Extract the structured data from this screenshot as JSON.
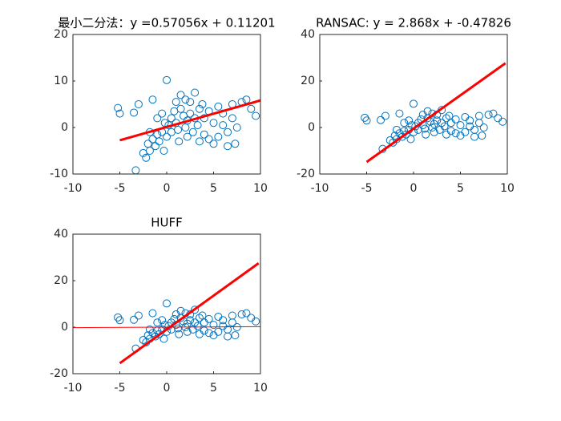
{
  "chart_data": [
    {
      "type": "scatter",
      "title": "最小二分法：y =0.57056x + 0.11201",
      "xlim": [
        -10,
        10
      ],
      "xticks": [
        -10,
        -5,
        0,
        5,
        10
      ],
      "ylim": [
        -10,
        20
      ],
      "yticks": [
        -10,
        0,
        10,
        20
      ],
      "series": [
        {
          "mode": "markers",
          "color": "#0072bd",
          "x": [
            -5.2,
            -5,
            -3.3,
            -3,
            -3.5,
            -2.5,
            -2.2,
            -2,
            -1.8,
            -1.5,
            -1.5,
            -1.2,
            -1,
            -1,
            -0.8,
            -0.5,
            -0.5,
            -0.2,
            0,
            0,
            0.2,
            0.5,
            0.5,
            0.8,
            1,
            1,
            1.2,
            1.5,
            1.5,
            1.8,
            2,
            2,
            2.2,
            2.5,
            2.5,
            2.8,
            3,
            3,
            3.3,
            3.5,
            3.5,
            4,
            4,
            4.5,
            4.5,
            5,
            5,
            5.5,
            5.5,
            6,
            6,
            6.5,
            7,
            7,
            7.3,
            7.5,
            8,
            8.5,
            9,
            9.5,
            6.5,
            3.8,
            1.3,
            -0.3,
            -1.8,
            2.2
          ],
          "y": [
            4.2,
            3,
            -9.2,
            5,
            3.2,
            -5.5,
            -6.5,
            -3.5,
            -5,
            -2.5,
            6,
            -4,
            -1.5,
            2,
            -3,
            -1,
            3,
            1,
            10.2,
            -2,
            0.5,
            2,
            -1,
            3.5,
            1,
            5.5,
            -0.5,
            4,
            7,
            2.5,
            6,
            0,
            -2,
            3,
            5.5,
            -1,
            7.5,
            2,
            0.5,
            4,
            -3,
            2,
            -1.5,
            3.5,
            -2.5,
            1,
            -3.5,
            4.5,
            -2,
            0.5,
            3,
            -1,
            5,
            2,
            -3.5,
            0,
            5.5,
            6,
            4,
            2.5,
            -4,
            5,
            -3,
            -5,
            -1,
            1.5
          ]
        },
        {
          "mode": "line",
          "color": "#ff0000",
          "width": 3,
          "x": [
            -5,
            10
          ],
          "y": [
            -2.74,
            5.82
          ]
        }
      ]
    },
    {
      "type": "scatter",
      "title": "RANSAC:  y =  2.868x + -0.47826",
      "xlim": [
        -10,
        10
      ],
      "xticks": [
        -10,
        -5,
        0,
        5,
        10
      ],
      "ylim": [
        -20,
        40
      ],
      "yticks": [
        -20,
        0,
        20,
        40
      ],
      "series": [
        {
          "mode": "markers",
          "color": "#0072bd",
          "x": [
            -5.2,
            -5,
            -3.3,
            -3,
            -3.5,
            -2.5,
            -2.2,
            -2,
            -1.8,
            -1.5,
            -1.5,
            -1.2,
            -1,
            -1,
            -0.8,
            -0.5,
            -0.5,
            -0.2,
            0,
            0,
            0.2,
            0.5,
            0.5,
            0.8,
            1,
            1,
            1.2,
            1.5,
            1.5,
            1.8,
            2,
            2,
            2.2,
            2.5,
            2.5,
            2.8,
            3,
            3,
            3.3,
            3.5,
            3.5,
            4,
            4,
            4.5,
            4.5,
            5,
            5,
            5.5,
            5.5,
            6,
            6,
            6.5,
            7,
            7,
            7.3,
            7.5,
            8,
            8.5,
            9,
            9.5,
            6.5,
            3.8,
            1.3,
            -0.3,
            -1.8,
            2.2
          ],
          "y": [
            4.2,
            3,
            -9.2,
            5,
            3.2,
            -5.5,
            -6.5,
            -3.5,
            -5,
            -2.5,
            6,
            -4,
            -1.5,
            2,
            -3,
            -1,
            3,
            1,
            10.2,
            -2,
            0.5,
            2,
            -1,
            3.5,
            1,
            5.5,
            -0.5,
            4,
            7,
            2.5,
            6,
            0,
            -2,
            3,
            5.5,
            -1,
            7.5,
            2,
            0.5,
            4,
            -3,
            2,
            -1.5,
            3.5,
            -2.5,
            1,
            -3.5,
            4.5,
            -2,
            0.5,
            3,
            -1,
            5,
            2,
            -3.5,
            0,
            5.5,
            6,
            4,
            2.5,
            -4,
            5,
            -3,
            -5,
            -1,
            1.5
          ]
        },
        {
          "mode": "line",
          "color": "#ff0000",
          "width": 3,
          "x": [
            -5,
            9.8
          ],
          "y": [
            -14.82,
            27.63
          ]
        }
      ]
    },
    {
      "type": "scatter",
      "title": "HUFF",
      "xlim": [
        -10,
        10
      ],
      "xticks": [
        -10,
        -5,
        0,
        5,
        10
      ],
      "ylim": [
        -20,
        40
      ],
      "yticks": [
        -20,
        0,
        20,
        40
      ],
      "series": [
        {
          "mode": "markers",
          "color": "#0072bd",
          "x": [
            -5.2,
            -5,
            -3.3,
            -3,
            -3.5,
            -2.5,
            -2.2,
            -2,
            -1.8,
            -1.5,
            -1.5,
            -1.2,
            -1,
            -1,
            -0.8,
            -0.5,
            -0.5,
            -0.2,
            0,
            0,
            0.2,
            0.5,
            0.5,
            0.8,
            1,
            1,
            1.2,
            1.5,
            1.5,
            1.8,
            2,
            2,
            2.2,
            2.5,
            2.5,
            2.8,
            3,
            3,
            3.3,
            3.5,
            3.5,
            4,
            4,
            4.5,
            4.5,
            5,
            5,
            5.5,
            5.5,
            6,
            6,
            6.5,
            7,
            7,
            7.3,
            7.5,
            8,
            8.5,
            9,
            9.5,
            6.5,
            3.8,
            1.3,
            -0.3,
            -1.8,
            2.2
          ],
          "y": [
            4.2,
            3,
            -9.2,
            5,
            3.2,
            -5.5,
            -6.5,
            -3.5,
            -5,
            -2.5,
            6,
            -4,
            -1.5,
            2,
            -3,
            -1,
            3,
            1,
            10.2,
            -2,
            0.5,
            2,
            -1,
            3.5,
            1,
            5.5,
            -0.5,
            4,
            7,
            2.5,
            6,
            0,
            -2,
            3,
            5.5,
            -1,
            7.5,
            2,
            0.5,
            4,
            -3,
            2,
            -1.5,
            3.5,
            -2.5,
            1,
            -3.5,
            4.5,
            -2,
            0.5,
            3,
            -1,
            5,
            2,
            -3.5,
            0,
            5.5,
            6,
            4,
            2.5,
            -4,
            5,
            -3,
            -5,
            -1,
            1.5
          ]
        },
        {
          "mode": "line",
          "color": "#ff0000",
          "width": 1,
          "x": [
            -10,
            10
          ],
          "y": [
            -0.2,
            0.2
          ]
        },
        {
          "mode": "line",
          "color": "#ff0000",
          "width": 3,
          "x": [
            -5,
            9.8
          ],
          "y": [
            -15.5,
            27.5
          ]
        }
      ]
    }
  ]
}
